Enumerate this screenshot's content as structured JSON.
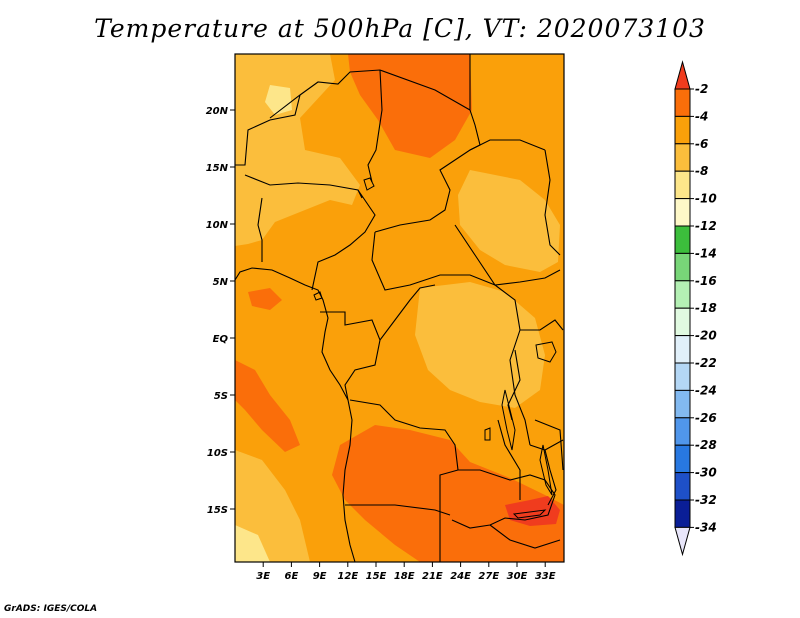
{
  "title": "Temperature at 500hPa [C], VT: 2020073103",
  "credit": "GrADS: IGES/COLA",
  "map": {
    "lon_ticks": [
      "3E",
      "6E",
      "9E",
      "12E",
      "15E",
      "18E",
      "21E",
      "24E",
      "27E",
      "30E",
      "33E"
    ],
    "lat_ticks": [
      "20N",
      "15N",
      "10N",
      "5N",
      "EQ",
      "5S",
      "10S",
      "15S"
    ],
    "lon_range_deg": [
      0,
      35
    ],
    "lat_range_deg": [
      -20,
      24.5
    ]
  },
  "colorbar": {
    "labels": [
      "-2",
      "-4",
      "-6",
      "-8",
      "-10",
      "-12",
      "-14",
      "-16",
      "-18",
      "-20",
      "-22",
      "-24",
      "-26",
      "-28",
      "-30",
      "-32",
      "-34"
    ],
    "colors": [
      "#f03c1e",
      "#fa6e0a",
      "#faa00a",
      "#fbbe3c",
      "#fde68a",
      "#fef8c8",
      "#3cbe3c",
      "#78d678",
      "#b4f0b4",
      "#e1fae1",
      "#e1f0fa",
      "#b4d7f5",
      "#82b9f0",
      "#5096eb",
      "#2878e1",
      "#1e50c8",
      "#0a1e96",
      "#e8e6fa"
    ]
  }
}
